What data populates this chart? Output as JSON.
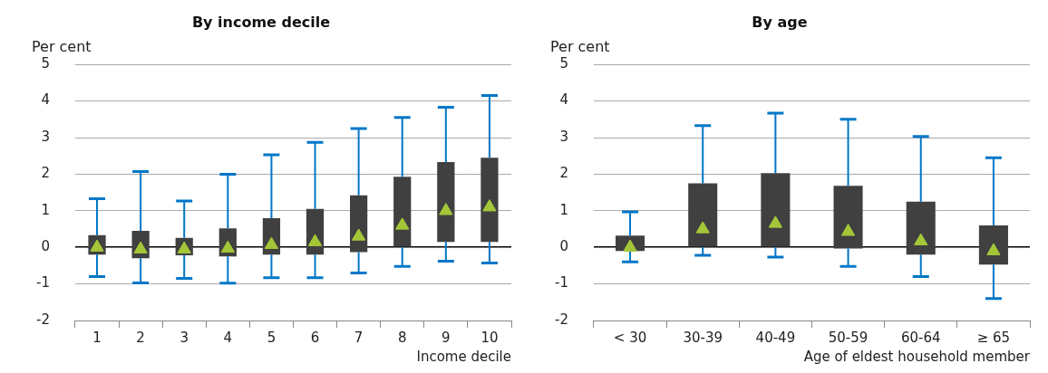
{
  "chart_data": [
    {
      "type": "box",
      "title": "By income decile",
      "ylabel": "Per cent",
      "xlabel": "Income decile",
      "categories": [
        "1",
        "2",
        "3",
        "4",
        "5",
        "6",
        "7",
        "8",
        "9",
        "10"
      ],
      "ylim": [
        -2,
        5
      ],
      "yticks": [
        -2,
        -1,
        0,
        1,
        2,
        3,
        4,
        5
      ],
      "grid": "y",
      "marker": "triangle",
      "series": [
        {
          "color": "#404040",
          "boxes": [
            {
              "low": -0.8,
              "q1": -0.2,
              "median": 0,
              "q3": 0.33,
              "high": 1.33
            },
            {
              "low": -0.97,
              "q1": -0.3,
              "median": -0.05,
              "q3": 0.45,
              "high": 2.07
            },
            {
              "low": -0.85,
              "q1": -0.22,
              "median": -0.05,
              "q3": 0.26,
              "high": 1.27
            },
            {
              "low": -0.98,
              "q1": -0.25,
              "median": -0.03,
              "q3": 0.52,
              "high": 2.0
            },
            {
              "low": -0.83,
              "q1": -0.2,
              "median": 0.07,
              "q3": 0.8,
              "high": 2.53
            },
            {
              "low": -0.83,
              "q1": -0.2,
              "median": 0.15,
              "q3": 1.05,
              "high": 2.87
            },
            {
              "low": -0.7,
              "q1": -0.13,
              "median": 0.3,
              "q3": 1.42,
              "high": 3.25
            },
            {
              "low": -0.52,
              "q1": 0,
              "median": 0.6,
              "q3": 1.93,
              "high": 3.55
            },
            {
              "low": -0.38,
              "q1": 0.15,
              "median": 1.0,
              "q3": 2.33,
              "high": 3.83
            },
            {
              "low": -0.43,
              "q1": 0.15,
              "median": 1.1,
              "q3": 2.45,
              "high": 4.15
            }
          ]
        }
      ]
    },
    {
      "type": "box",
      "title": "By age",
      "ylabel": "Per cent",
      "xlabel": "Age of eldest household member",
      "categories": [
        "< 30",
        "30-39",
        "40-49",
        "50-59",
        "60-64",
        "≥ 65"
      ],
      "ylim": [
        -2,
        5
      ],
      "yticks": [
        -2,
        -1,
        0,
        1,
        2,
        3,
        4,
        5
      ],
      "grid": "y",
      "marker": "triangle",
      "series": [
        {
          "color": "#404040",
          "boxes": [
            {
              "low": -0.4,
              "q1": -0.1,
              "median": 0,
              "q3": 0.32,
              "high": 0.97
            },
            {
              "low": -0.22,
              "q1": 0,
              "median": 0.5,
              "q3": 1.75,
              "high": 3.33
            },
            {
              "low": -0.27,
              "q1": 0,
              "median": 0.65,
              "q3": 2.03,
              "high": 3.67
            },
            {
              "low": -0.52,
              "q1": -0.03,
              "median": 0.43,
              "q3": 1.68,
              "high": 3.5
            },
            {
              "low": -0.8,
              "q1": -0.2,
              "median": 0.17,
              "q3": 1.25,
              "high": 3.03
            },
            {
              "low": -1.4,
              "q1": -0.47,
              "median": -0.1,
              "q3": 0.6,
              "high": 2.45
            }
          ]
        }
      ]
    }
  ]
}
